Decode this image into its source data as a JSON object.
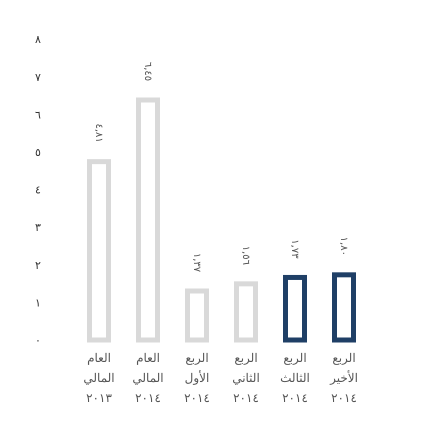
{
  "chart_data": {
    "type": "bar",
    "ylim": [
      0,
      8
    ],
    "yticks": [
      "٠",
      "١",
      "٢",
      "٣",
      "٤",
      "٥",
      "٦",
      "٧",
      "٨"
    ],
    "categories": [
      {
        "line1": "العام",
        "line2": "المالي",
        "line3": "٢٠١٣"
      },
      {
        "line1": "العام",
        "line2": "المالي",
        "line3": "٢٠١٤"
      },
      {
        "line1": "الربع",
        "line2": "الأول",
        "line3": "٢٠١٤"
      },
      {
        "line1": "الربع",
        "line2": "الثاني",
        "line3": "٢٠١٤"
      },
      {
        "line1": "الربع",
        "line2": "الثالث",
        "line3": "٢٠١٤"
      },
      {
        "line1": "الربع",
        "line2": "الأخير",
        "line3": "٢٠١٤"
      }
    ],
    "values": [
      4.81,
      6.45,
      1.37,
      1.56,
      1.73,
      1.8
    ],
    "value_labels": [
      "٤,٨١",
      "٦,٤٥",
      "١,٣٧",
      "١,٥٦",
      "١,٧٣",
      "١,٨٠"
    ],
    "bar_colors": [
      "#d9d9d9",
      "#d9d9d9",
      "#d9d9d9",
      "#d9d9d9",
      "#1f3f66",
      "#1f3f66"
    ],
    "grid": false,
    "legend": "none"
  }
}
